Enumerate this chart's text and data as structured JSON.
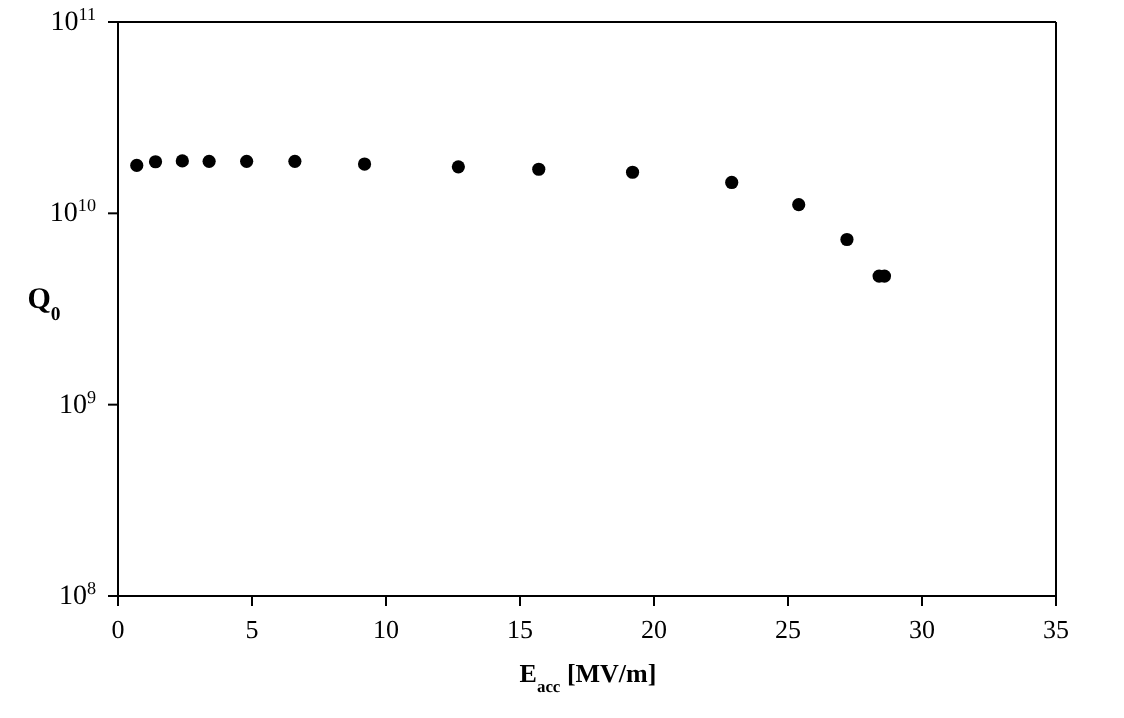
{
  "chart_data": {
    "type": "scatter",
    "xlabel": "E$_{acc}$ [MV/m]",
    "ylabel": "Q$_{0}$",
    "x": [
      0.7,
      1.4,
      2.4,
      3.4,
      4.8,
      6.6,
      9.2,
      12.7,
      15.7,
      19.2,
      22.9,
      25.4,
      27.2,
      28.4,
      28.6
    ],
    "series": [
      {
        "color": "#000000",
        "values": [
          17800000000.0,
          18600000000.0,
          18800000000.0,
          18700000000.0,
          18700000000.0,
          18700000000.0,
          18100000000.0,
          17500000000.0,
          17000000000.0,
          16400000000.0,
          14500000000.0,
          11100000000.0,
          7300000000.0,
          4700000000.0,
          4700000000.0
        ]
      }
    ],
    "xlim": [
      0,
      35
    ],
    "xticks": [
      0,
      5,
      10,
      15,
      20,
      25,
      30,
      35
    ],
    "ylim": [
      100000000.0,
      100000000000.0
    ],
    "yticks": [
      {
        "value": 100000000.0,
        "label": "10$^{8}$"
      },
      {
        "value": 1000000000.0,
        "label": "10$^{9}$"
      },
      {
        "value": 10000000000.0,
        "label": "10$^{10}$"
      },
      {
        "value": 100000000000.0,
        "label": "10$^{11}$"
      }
    ],
    "log": "y",
    "marker": "circle"
  }
}
